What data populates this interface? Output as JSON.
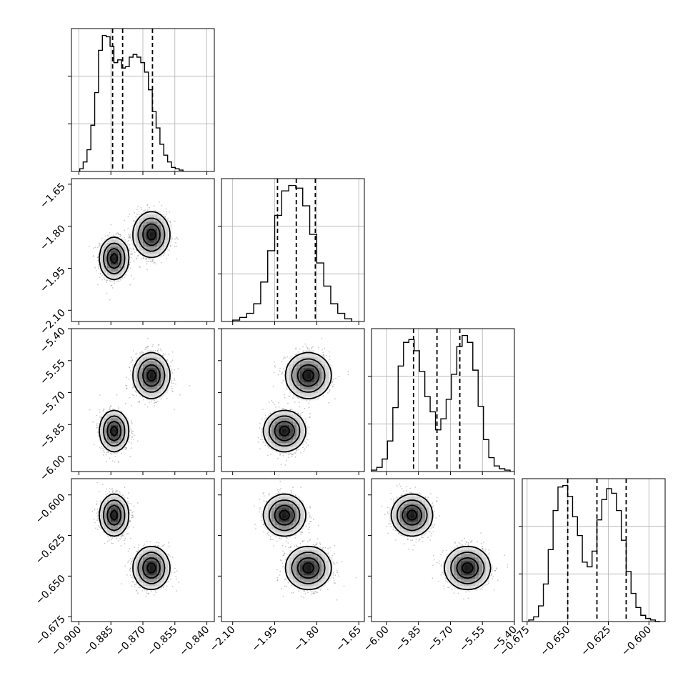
{
  "chart_data": {
    "type": "corner",
    "parameters": [
      {
        "range": [
          -0.9035,
          -0.8365
        ],
        "ticks": [
          -0.9,
          -0.885,
          -0.87,
          -0.855,
          -0.84
        ],
        "tick_labels": [
          "−0.900",
          "−0.885",
          "−0.870",
          "−0.855",
          "−0.840"
        ],
        "quantiles": [
          -0.8842,
          -0.8795,
          -0.8655
        ],
        "hist_edges": [
          -0.8996,
          -0.898,
          -0.8962,
          -0.8944,
          -0.8926,
          -0.8908,
          -0.889,
          -0.8872,
          -0.8854,
          -0.8836,
          -0.8818,
          -0.88,
          -0.8782,
          -0.8764,
          -0.8746,
          -0.8728,
          -0.871,
          -0.8692,
          -0.8674,
          -0.8656,
          -0.8638,
          -0.862,
          -0.8602,
          -0.8584,
          -0.8566,
          -0.8548,
          -0.853,
          -0.8512
        ],
        "hist_counts": [
          0.02,
          0.07,
          0.16,
          0.34,
          0.58,
          0.89,
          1.0,
          0.99,
          0.92,
          0.8,
          0.82,
          0.76,
          0.77,
          0.84,
          0.86,
          0.84,
          0.8,
          0.73,
          0.6,
          0.44,
          0.32,
          0.2,
          0.12,
          0.07,
          0.03,
          0.02,
          0.01
        ]
      },
      {
        "range": [
          -2.14,
          -1.63
        ],
        "ticks": [
          -2.1,
          -1.95,
          -1.8,
          -1.65
        ],
        "tick_labels": [
          "−2.10",
          "−1.95",
          "−1.80",
          "−1.65"
        ],
        "quantiles": [
          -1.94,
          -1.873,
          -1.805
        ],
        "hist_edges": [
          -2.1,
          -2.075,
          -2.05,
          -2.025,
          -2.0,
          -1.975,
          -1.95,
          -1.925,
          -1.9,
          -1.875,
          -1.85,
          -1.825,
          -1.8,
          -1.775,
          -1.75,
          -1.725,
          -1.7,
          -1.675
        ],
        "hist_counts": [
          0.01,
          0.03,
          0.06,
          0.13,
          0.29,
          0.52,
          0.78,
          0.96,
          1.0,
          0.98,
          0.85,
          0.64,
          0.43,
          0.26,
          0.13,
          0.06,
          0.02
        ]
      },
      {
        "range": [
          -6.07,
          -5.4
        ],
        "ticks": [
          -6.0,
          -5.85,
          -5.7,
          -5.55,
          -5.4
        ],
        "tick_labels": [
          "−6.00",
          "−5.85",
          "−5.70",
          "−5.55",
          "−5.40"
        ],
        "quantiles": [
          -5.873,
          -5.763,
          -5.656
        ],
        "hist_edges": [
          -6.07,
          -6.045,
          -6.02,
          -5.995,
          -5.97,
          -5.945,
          -5.92,
          -5.895,
          -5.87,
          -5.845,
          -5.82,
          -5.795,
          -5.77,
          -5.745,
          -5.72,
          -5.695,
          -5.67,
          -5.645,
          -5.62,
          -5.595,
          -5.57,
          -5.545,
          -5.52,
          -5.495,
          -5.47,
          -5.445,
          -5.42
        ],
        "hist_counts": [
          0.01,
          0.03,
          0.09,
          0.22,
          0.46,
          0.76,
          0.93,
          0.95,
          0.87,
          0.72,
          0.54,
          0.43,
          0.3,
          0.38,
          0.52,
          0.7,
          0.9,
          0.98,
          0.93,
          0.73,
          0.47,
          0.23,
          0.1,
          0.04,
          0.02,
          0.01
        ]
      },
      {
        "range": [
          -0.678,
          -0.59
        ],
        "ticks": [
          -0.675,
          -0.65,
          -0.625,
          -0.6
        ],
        "tick_labels": [
          "−0.675",
          "−0.650",
          "−0.625",
          "−0.600"
        ],
        "quantiles": [
          -0.65,
          -0.632,
          -0.614
        ],
        "hist_edges": [
          -0.674,
          -0.671,
          -0.668,
          -0.665,
          -0.662,
          -0.659,
          -0.656,
          -0.653,
          -0.65,
          -0.647,
          -0.644,
          -0.641,
          -0.638,
          -0.635,
          -0.632,
          -0.629,
          -0.626,
          -0.623,
          -0.62,
          -0.617,
          -0.614,
          -0.611,
          -0.608,
          -0.605,
          -0.602,
          -0.599,
          -0.596,
          -0.593
        ],
        "hist_counts": [
          0.01,
          0.03,
          0.1,
          0.24,
          0.46,
          0.71,
          0.86,
          0.87,
          0.8,
          0.67,
          0.55,
          0.38,
          0.35,
          0.45,
          0.65,
          0.78,
          0.85,
          0.82,
          0.71,
          0.52,
          0.32,
          0.18,
          0.09,
          0.04,
          0.02,
          0.01,
          0.0
        ]
      }
    ],
    "modes": [
      {
        "center": [
          -0.8835,
          -1.915,
          -5.88,
          -0.6125
        ],
        "sd": [
          0.0032,
          0.035,
          0.045,
          0.006
        ],
        "weight": 0.5
      },
      {
        "center": [
          -0.866,
          -1.83,
          -5.62,
          -0.645
        ],
        "sd": [
          0.004,
          0.038,
          0.05,
          0.0062
        ],
        "weight": 0.5
      }
    ],
    "grid": true
  }
}
